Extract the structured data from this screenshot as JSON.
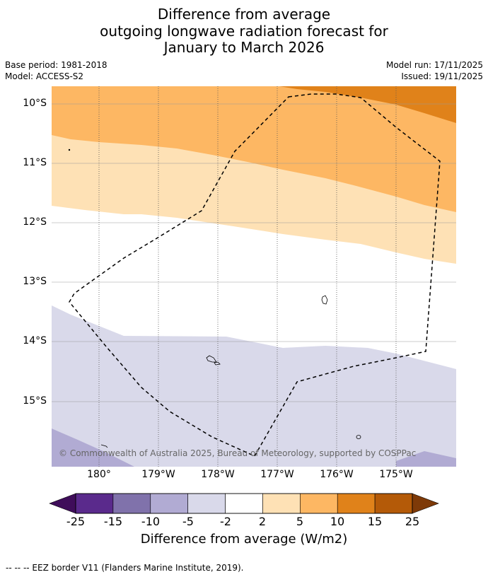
{
  "title": {
    "line1": "Difference from average",
    "line2": "outgoing longwave radiation forecast for",
    "line3": "January to March 2026"
  },
  "meta": {
    "base_period": "Base period: 1981-2018",
    "model": "Model: ACCESS-S2",
    "model_run": "Model run: 17/11/2025",
    "issued": "Issued: 19/11/2025"
  },
  "map": {
    "lat_labels": [
      "10°S",
      "11°S",
      "12°S",
      "13°S",
      "14°S",
      "15°S"
    ],
    "lon_labels": [
      "180°",
      "179°W",
      "178°W",
      "177°W",
      "176°W",
      "175°W"
    ],
    "copyright": "© Commonwealth of Australia 2025, Bureau of Meteorology, supported by COSPPac",
    "features": [
      "EEZ border (dashed)",
      "island outlines"
    ]
  },
  "colorbar": {
    "title": "Difference from average (W/m2)",
    "tick_labels": [
      "-25",
      "-15",
      "-10",
      "-5",
      "-2",
      "2",
      "5",
      "10",
      "15",
      "25"
    ],
    "colors": {
      "lt_minus25": "#3f0d5a",
      "minus25_minus15": "#5a2a8c",
      "minus15_minus10": "#8072ab",
      "minus10_minus5": "#b1abd3",
      "minus5_minus2": "#d9d9ea",
      "minus2_2": "#ffffff",
      "2_5": "#fee1b5",
      "5_10": "#fdb763",
      "10_15": "#e0821a",
      "15_25": "#b45a08",
      "gt_25": "#7e3a08"
    }
  },
  "footer": {
    "legend": "--  --  -- EEZ border V11 (Flanders Marine Institute, 2019)."
  }
}
